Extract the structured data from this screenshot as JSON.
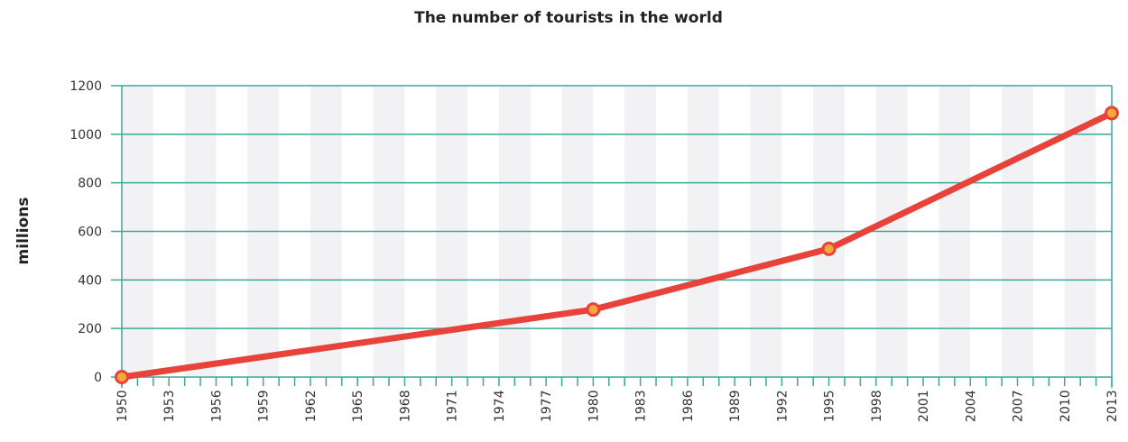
{
  "chart_data": {
    "type": "line",
    "title": "The number of tourists in the world",
    "xlabel": "",
    "ylabel": "millions",
    "x": [
      1950,
      1980,
      1995,
      2013
    ],
    "series": [
      {
        "values": [
          0,
          278,
          528,
          1087
        ]
      }
    ],
    "xlim": [
      1950,
      2013
    ],
    "ylim": [
      0,
      1200
    ],
    "yticks": [
      0,
      200,
      400,
      600,
      800,
      1000,
      1200
    ],
    "xticks": [
      1950,
      1953,
      1956,
      1959,
      1962,
      1965,
      1968,
      1971,
      1974,
      1977,
      1980,
      1983,
      1986,
      1989,
      1992,
      1995,
      1998,
      2001,
      2004,
      2007,
      2010,
      2013
    ],
    "grid": "horizontal",
    "legend": "none",
    "colors": {
      "line": "#e8433a",
      "marker_fill": "#f5a93a",
      "grid": "#3aa99a",
      "band": "#f2f2f4",
      "text": "#333333"
    }
  }
}
